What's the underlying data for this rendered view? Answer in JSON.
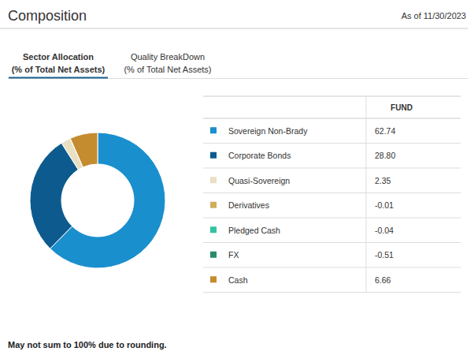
{
  "chart_data": {
    "type": "donut",
    "title": "Composition",
    "subtitle": "As of 11/30/2023",
    "tabs": [
      {
        "label": "Sector Allocation",
        "sublabel": "(% of Total Net Assets)"
      },
      {
        "label": "Quality BreakDown",
        "sublabel": "(% of Total Net Assets)"
      }
    ],
    "table_header": "FUND",
    "categories": [
      "Sovereign Non-Brady",
      "Corporate Bonds",
      "Quasi-Sovereign",
      "Derivatives",
      "Pledged Cash",
      "FX",
      "Cash"
    ],
    "values": [
      62.74,
      28.8,
      2.35,
      -0.01,
      -0.04,
      -0.51,
      6.66
    ],
    "value_labels": [
      "62.74",
      "28.80",
      "2.35",
      "-0.01",
      "-0.04",
      "-0.51",
      "6.66"
    ],
    "colors": [
      "#1a8fcd",
      "#0d5b8e",
      "#e9dfc3",
      "#cfae5c",
      "#34c3a3",
      "#2a8a6c",
      "#c58b2f"
    ],
    "footnote": "May not sum to 100% due to rounding."
  }
}
